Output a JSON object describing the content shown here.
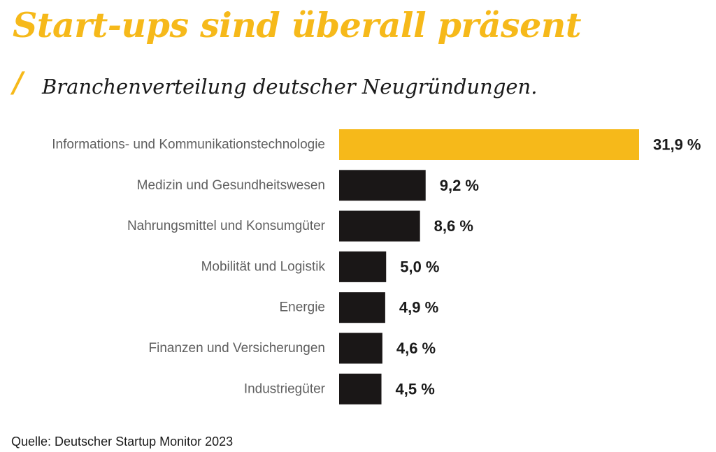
{
  "header": {
    "title": "Start-ups sind überall präsent",
    "slash": "/",
    "subtitle": "Branchenverteilung deutscher Neugründungen."
  },
  "colors": {
    "accent": "#f6b91a",
    "bar_default": "#1a1717",
    "text_dark": "#1a1a1a",
    "text_label": "#5f5f5f"
  },
  "chart_data": {
    "type": "bar",
    "orientation": "horizontal",
    "categories": [
      "Informations- und Kommunikationstechnologie",
      "Medizin und Gesundheitswesen",
      "Nahrungsmittel und Konsumgüter",
      "Mobilität und Logistik",
      "Energie",
      "Finanzen und Versicherungen",
      "Industriegüter"
    ],
    "values": [
      31.9,
      9.2,
      8.6,
      5.0,
      4.9,
      4.6,
      4.5
    ],
    "value_labels": [
      "31,9 %",
      "9,2 %",
      "8,6 %",
      "5,0 %",
      "4,9 %",
      "4,6 %",
      "4,5 %"
    ],
    "highlight_index": 0,
    "xlim": [
      0,
      31.9
    ],
    "grid": false,
    "legend": "none"
  },
  "footer": {
    "source": "Quelle: Deutscher Startup Monitor 2023"
  }
}
